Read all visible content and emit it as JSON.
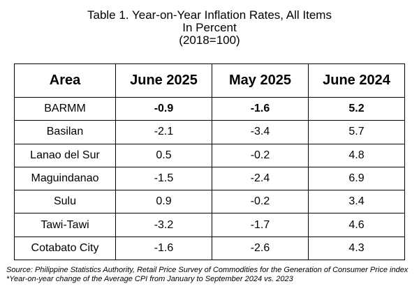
{
  "title": {
    "line1": "Table 1. Year-on-Year Inflation Rates, All Items",
    "line2": "In Percent",
    "line3": "(2018=100)"
  },
  "chart_data": {
    "type": "table",
    "title": "Table 1. Year-on-Year Inflation Rates, All Items",
    "subtitle": "In Percent (2018=100)",
    "columns": [
      "Area",
      "June 2025",
      "May 2025",
      "June 2024"
    ],
    "rows": [
      {
        "area": "BARMM",
        "values": [
          "-0.9",
          "-1.6",
          "5.2"
        ],
        "bold": true
      },
      {
        "area": "Basilan",
        "values": [
          "-2.1",
          "-3.4",
          "5.7"
        ],
        "bold": false
      },
      {
        "area": "Lanao del Sur",
        "values": [
          "0.5",
          "-0.2",
          "4.8"
        ],
        "bold": false
      },
      {
        "area": "Maguindanao",
        "values": [
          "-1.5",
          "-2.4",
          "6.9"
        ],
        "bold": false
      },
      {
        "area": "Sulu",
        "values": [
          "0.9",
          "-0.2",
          "3.4"
        ],
        "bold": false
      },
      {
        "area": "Tawi-Tawi",
        "values": [
          "-3.2",
          "-1.7",
          "4.6"
        ],
        "bold": false
      },
      {
        "area": "Cotabato City",
        "values": [
          "-1.6",
          "-2.6",
          "4.3"
        ],
        "bold": false
      }
    ]
  },
  "notes": {
    "source": "Source: Philippine Statistics Authority, Retail Price Survey of Commodities for the Generation of Consumer Price index",
    "footnote": "*Year-on-year change of the Average CPI from January to September 2024 vs. 2023"
  }
}
